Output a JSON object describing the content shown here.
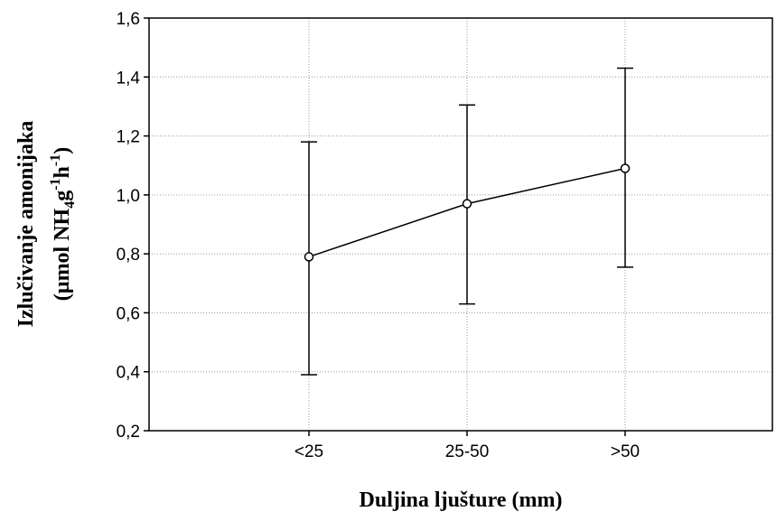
{
  "chart_data": {
    "type": "line",
    "categories": [
      "<25",
      "25-50",
      ">50"
    ],
    "series": [
      {
        "values": [
          0.79,
          0.97,
          1.09
        ],
        "error_low": [
          0.39,
          0.63,
          0.755
        ],
        "error_high": [
          1.18,
          1.305,
          1.43
        ]
      }
    ],
    "xlabel": "Duljina ljušture (mm)",
    "ylabel_line1": "Izlučivanje amonijaka",
    "ylabel_line2": "(µmol NH",
    "ylabel_sub": "4",
    "ylabel_mid": "g",
    "ylabel_sup1": "-1",
    "ylabel_mid2": "h",
    "ylabel_sup2": "-1",
    "ylabel_end": ")",
    "ylim": [
      0.2,
      1.6
    ],
    "yticks": [
      "0,2",
      "0,4",
      "0,6",
      "0,8",
      "1,0",
      "1,2",
      "1,4",
      "1,6"
    ],
    "grid": true,
    "marker": "open-circle",
    "line_color": "#000000"
  }
}
